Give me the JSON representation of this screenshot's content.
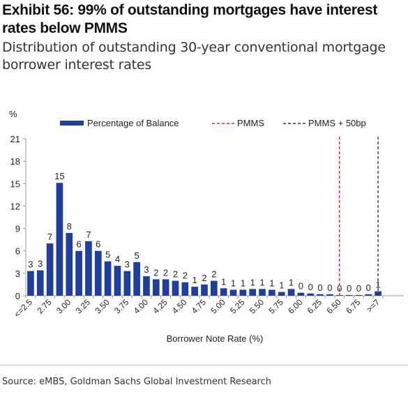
{
  "title": "Exhibit 56: 99% of outstanding mortgages have interest rates below PMMS",
  "subtitle": "Distribution of outstanding 30-year conventional mortgage borrower interest rates",
  "source": "Source: eMBS, Goldman Sachs Global Investment Research",
  "colors": {
    "bar": "#1f3fa0",
    "pmms": "#e8262b",
    "pmms50": "#333333",
    "grid": "#9a9a9a"
  },
  "chart_data": {
    "type": "bar",
    "title": "",
    "ylabel": "%",
    "xlabel": "Borrower Note Rate (%)",
    "ylim": [
      0,
      21
    ],
    "yticks": [
      0,
      3,
      6,
      9,
      12,
      15,
      18,
      21
    ],
    "grid": false,
    "legend_position": "top",
    "categories": [
      "<=2.5",
      "2.625",
      "2.75",
      "2.875",
      "3.00",
      "3.125",
      "3.25",
      "3.375",
      "3.50",
      "3.625",
      "3.75",
      "3.875",
      "4.00",
      "4.125",
      "4.25",
      "4.375",
      "4.50",
      "4.625",
      "4.75",
      "4.875",
      "5.00",
      "5.125",
      "5.25",
      "5.375",
      "5.50",
      "5.625",
      "5.75",
      "5.875",
      "6.00",
      "6.125",
      "6.25",
      "6.375",
      "6.50",
      "6.625",
      "6.75",
      "6.875",
      ">=7"
    ],
    "tick_labels": [
      "<=2.5",
      "2.75",
      "3.00",
      "3.25",
      "3.50",
      "3.75",
      "4.00",
      "4.25",
      "4.50",
      "4.75",
      "5.00",
      "5.25",
      "5.50",
      "5.75",
      "6.00",
      "6.25",
      "6.50",
      "6.75",
      ">=7"
    ],
    "series": [
      {
        "name": "Percentage of Balance",
        "values": [
          3.3,
          3.4,
          7.0,
          15.1,
          8.4,
          6.0,
          7.3,
          6.0,
          4.6,
          4.0,
          3.3,
          4.5,
          2.6,
          2.2,
          2.2,
          2.0,
          1.8,
          1.2,
          1.5,
          2.0,
          1.0,
          0.8,
          0.8,
          0.9,
          0.9,
          0.8,
          0.5,
          0.9,
          0.4,
          0.3,
          0.2,
          0.2,
          0.1,
          0.1,
          0.1,
          0.2,
          0.6
        ],
        "labels": [
          "3",
          "3",
          "7",
          "15",
          "8",
          "6",
          "7",
          "6",
          "5",
          "4",
          "3",
          "5",
          "3",
          "2",
          "2",
          "2",
          "2",
          "1",
          "2",
          "2",
          "1",
          "1",
          "1",
          "1",
          "1",
          "1",
          "1",
          "1",
          "0",
          "0",
          "0",
          "0",
          "0",
          "0",
          "0",
          "0",
          "1"
        ]
      }
    ],
    "reference_lines": [
      {
        "name": "PMMS",
        "x": "6.50",
        "style": "dashed"
      },
      {
        "name": "PMMS + 50bp",
        "x": ">=7",
        "style": "dashed"
      }
    ]
  }
}
